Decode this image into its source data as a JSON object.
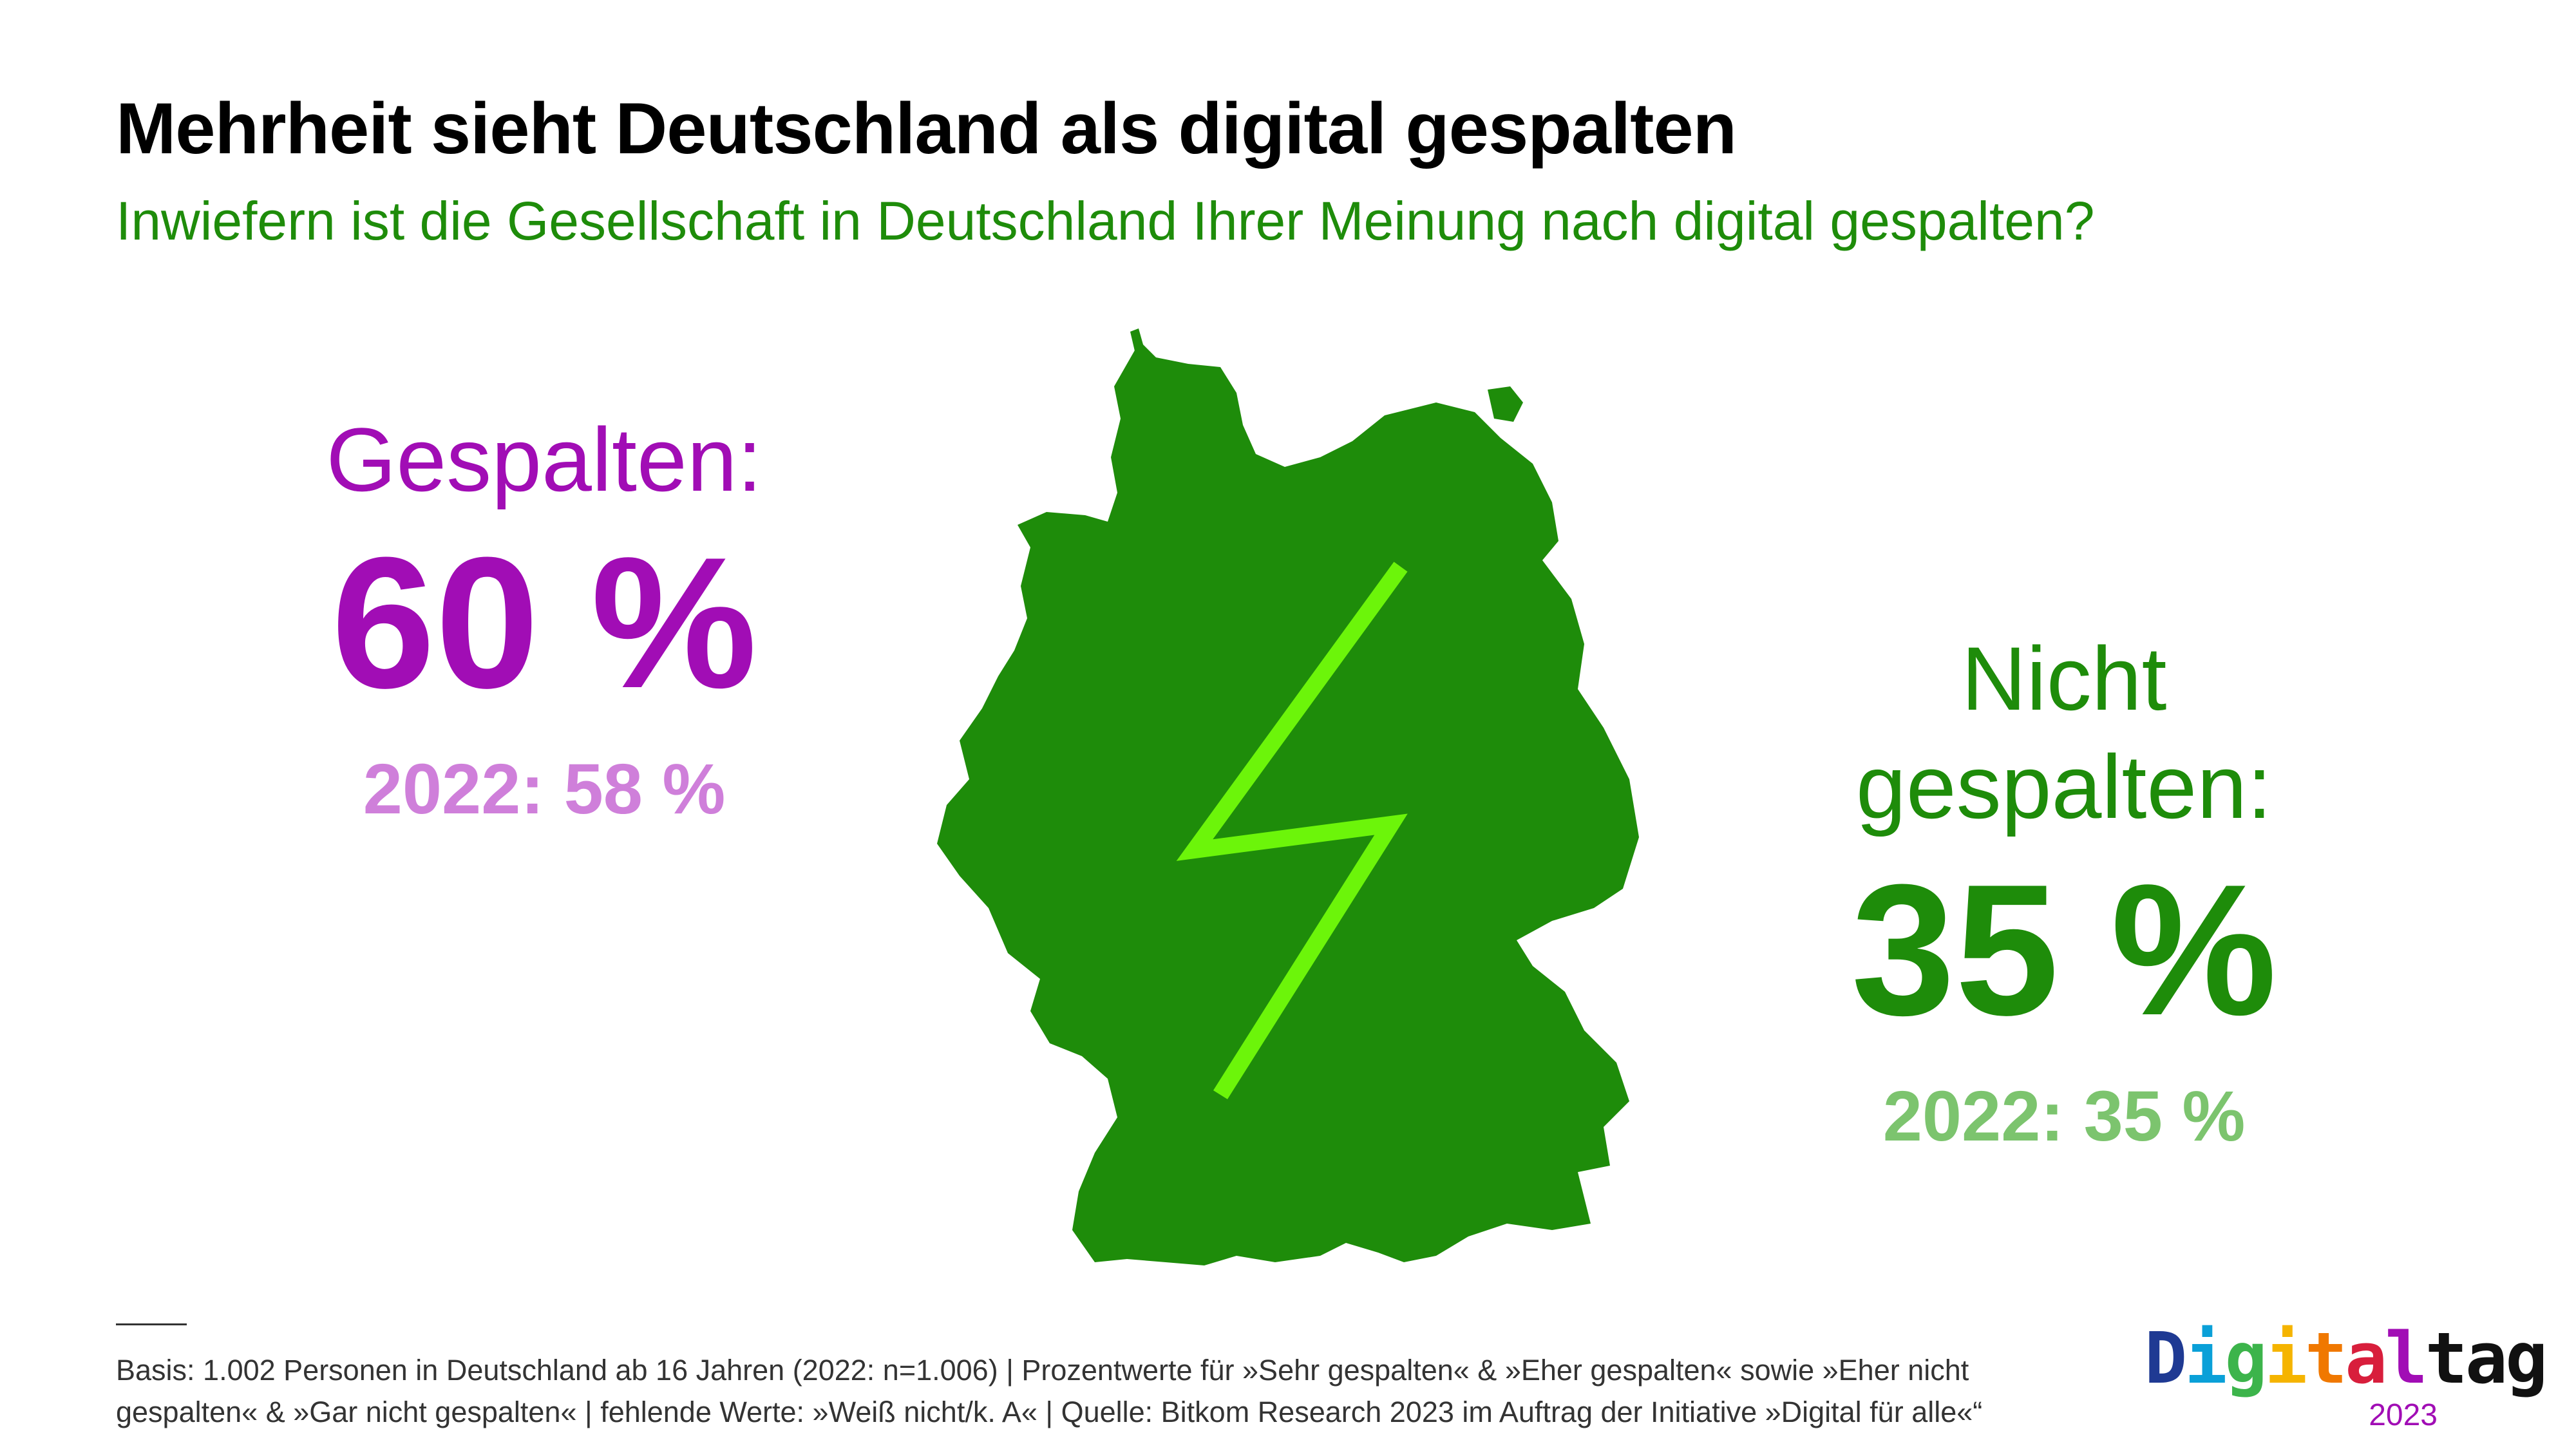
{
  "title": "Mehrheit sieht Deutschland als digital gespalten",
  "subtitle": "Inwiefern ist die Gesellschaft in Deutschland Ihrer Meinung nach digital gespalten?",
  "colors": {
    "primary_green": "#1e8c0a",
    "primary_purple": "#a10db5",
    "light_purple": "#cf7fda",
    "light_green": "#7cc46e",
    "lightning": "#6cf50a"
  },
  "chart_data": {
    "type": "infographic",
    "categories": [
      "Gespalten",
      "Nicht gespalten"
    ],
    "series": [
      {
        "name": "2023",
        "values": [
          60,
          35
        ]
      },
      {
        "name": "2022",
        "values": [
          58,
          35
        ]
      }
    ],
    "unit": "%"
  },
  "stats": {
    "split": {
      "label": "Gespalten:",
      "value": "60 %",
      "prev": "2022: 58 %"
    },
    "not_split": {
      "label_line1": "Nicht",
      "label_line2": "gespalten:",
      "value": "35 %",
      "prev": "2022: 35 %"
    }
  },
  "map": {
    "icon": "germany-map-icon",
    "overlay_icon": "lightning-bolt-icon"
  },
  "footnote": {
    "line1": "Basis: 1.002 Personen in Deutschland ab 16 Jahren (2022: n=1.006) | Prozentwerte für »Sehr gespalten« & »Eher gespalten« sowie »Eher nicht",
    "line2": "gespalten« & »Gar nicht gespalten« | fehlende Werte: »Weiß nicht/k. A« | Quelle: Bitkom Research 2023 im Auftrag der Initiative »Digital für alle«“"
  },
  "logo": {
    "letters": [
      "D",
      "i",
      "g",
      "i",
      "t",
      "a",
      "l",
      "t",
      "a",
      "g"
    ],
    "letter_colors": [
      "#1f3a93",
      "#0aa0d8",
      "#3cb44b",
      "#f5b400",
      "#f07800",
      "#d81e3c",
      "#a10db5",
      "#111111",
      "#111111",
      "#111111"
    ],
    "year": "2023"
  }
}
